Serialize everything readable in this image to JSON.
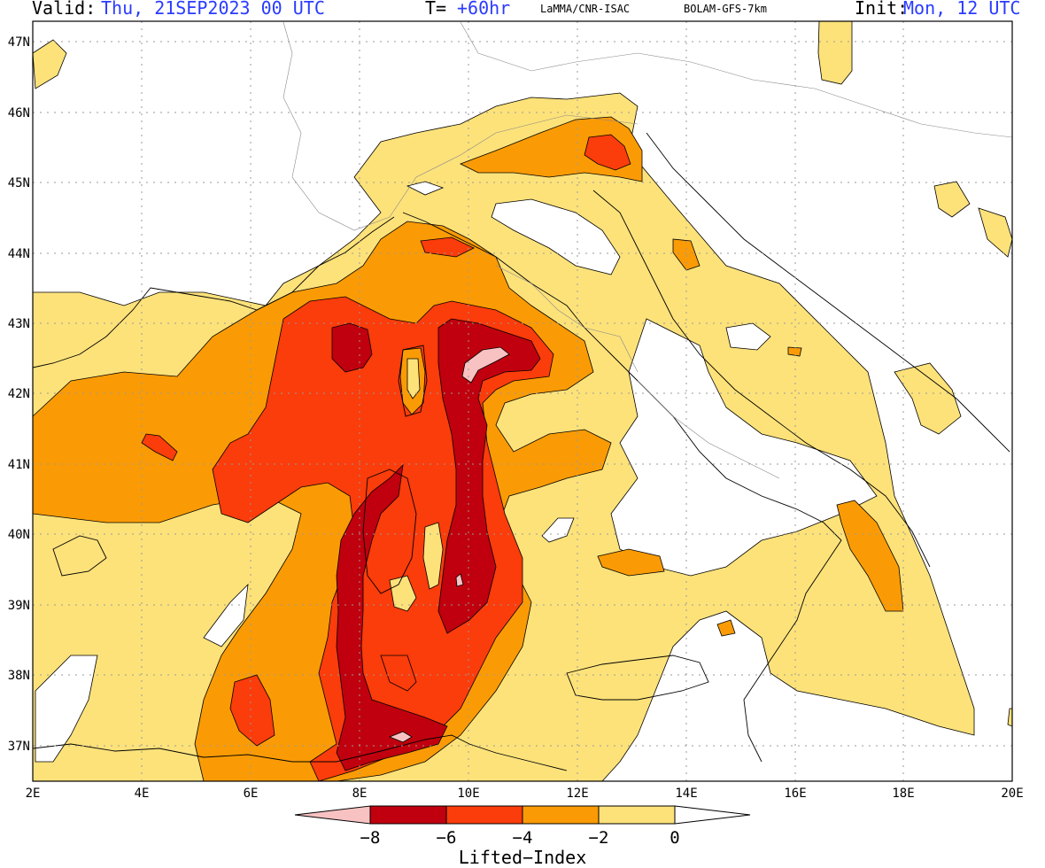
{
  "header": {
    "valid_label": "Valid:",
    "valid_time": "Thu, 21SEP2023   00 UTC",
    "t_label": "T=",
    "t_value": "+60hr",
    "source": "LaMMA/CNR-ISAC",
    "model": "BOLAM-GFS-7km",
    "init_label": "Init:",
    "init_time": "Mon, 12 UTC"
  },
  "map": {
    "lat_ticks": [
      "47N",
      "46N",
      "45N",
      "44N",
      "43N",
      "42N",
      "41N",
      "40N",
      "39N",
      "38N",
      "37N"
    ],
    "lon_ticks": [
      "2E",
      "4E",
      "6E",
      "8E",
      "10E",
      "12E",
      "14E",
      "16E",
      "18E",
      "20E"
    ],
    "colors": {
      "lt_-8": "#f9c2c2",
      "-8_-6": "#c0000e",
      "-6_-4": "#fb3c0b",
      "-4_-2": "#fa9b05",
      "-2_0": "#fde27a",
      "gt_0": "#ffffff"
    }
  },
  "colorbar": {
    "labels": [
      "−8",
      "−6",
      "−4",
      "−2",
      "0"
    ],
    "title": "Lifted−Index"
  }
}
